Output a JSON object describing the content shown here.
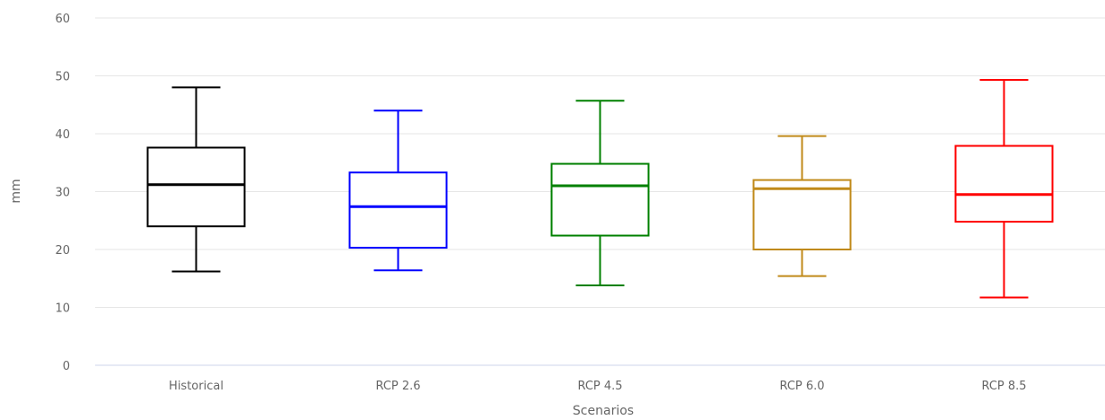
{
  "chart_data": {
    "type": "boxplot",
    "title": "",
    "xlabel": "Scenarios",
    "ylabel": "mm",
    "ylim": [
      0,
      60
    ],
    "yticks": [
      0,
      10,
      20,
      30,
      40,
      50,
      60
    ],
    "grid": true,
    "categories": [
      "Historical",
      "RCP 2.6",
      "RCP 4.5",
      "RCP 6.0",
      "RCP 8.5"
    ],
    "series": [
      {
        "category": "Historical",
        "color": "#000000",
        "min": 16.2,
        "q1": 24.0,
        "median": 31.2,
        "q3": 37.6,
        "max": 48.0
      },
      {
        "category": "RCP 2.6",
        "color": "#0000ff",
        "min": 16.4,
        "q1": 20.3,
        "median": 27.4,
        "q3": 33.3,
        "max": 44.0
      },
      {
        "category": "RCP 4.5",
        "color": "#008000",
        "min": 13.8,
        "q1": 22.4,
        "median": 31.0,
        "q3": 34.8,
        "max": 45.7
      },
      {
        "category": "RCP 6.0",
        "color": "#c08a1a",
        "min": 15.4,
        "q1": 20.0,
        "median": 30.5,
        "q3": 32.0,
        "max": 39.6
      },
      {
        "category": "RCP 8.5",
        "color": "#ff0000",
        "min": 11.7,
        "q1": 24.8,
        "median": 29.5,
        "q3": 37.9,
        "max": 49.3
      }
    ]
  }
}
